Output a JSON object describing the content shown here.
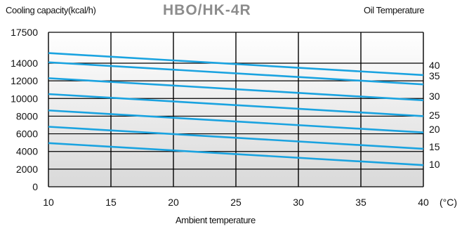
{
  "header": {
    "title": "HBO/HK-4R",
    "ylabel": "Cooling capacity(kcal/h)",
    "series_legend_title": "Oil Temperature",
    "xlabel": "Ambient temperature",
    "x_unit": "(°C)"
  },
  "colors": {
    "line": "#1aa3e0",
    "grid": "#000000",
    "background_top": "#ffffff",
    "background_bottom": "#d9d9d9"
  },
  "chart_data": {
    "type": "line",
    "title": "HBO/HK-4R",
    "xlabel": "Ambient temperature",
    "ylabel": "Cooling capacity(kcal/h)",
    "legend_title": "Oil Temperature",
    "x": [
      10,
      40
    ],
    "xlim": [
      10,
      40
    ],
    "ylim": [
      0,
      17500
    ],
    "x_ticks": [
      "10",
      "15",
      "20",
      "25",
      "30",
      "35",
      "40"
    ],
    "y_ticks": [
      "0",
      "2000",
      "4000",
      "6000",
      "8000",
      "10000",
      "12000",
      "14000",
      "17500"
    ],
    "grid": true,
    "series": [
      {
        "name": "40",
        "values": [
          15150,
          12650
        ]
      },
      {
        "name": "35",
        "values": [
          14100,
          11600
        ]
      },
      {
        "name": "30",
        "values": [
          12300,
          9800
        ]
      },
      {
        "name": "25",
        "values": [
          10500,
          8000
        ]
      },
      {
        "name": "20",
        "values": [
          8650,
          6150
        ]
      },
      {
        "name": "15",
        "values": [
          6800,
          4300
        ]
      },
      {
        "name": "10",
        "values": [
          4950,
          2450
        ]
      }
    ]
  }
}
